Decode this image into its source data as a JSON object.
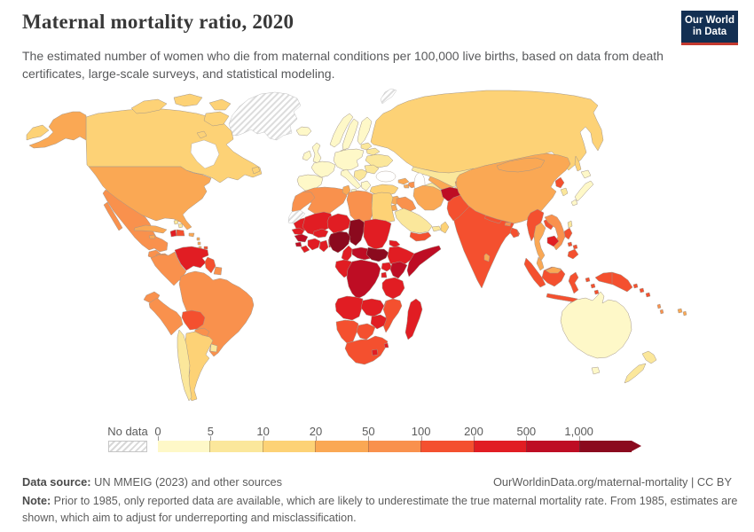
{
  "header": {
    "title": "Maternal mortality ratio, 2020",
    "subtitle": "The estimated number of women who die from maternal conditions per 100,000 live births, based on data from death certificates, large-scale surveys, and statistical modeling.",
    "logo": {
      "line1": "Our World",
      "line2": "in Data",
      "bg_color": "#132f52",
      "accent_color": "#c4392f"
    }
  },
  "legend": {
    "no_data_label": "No data",
    "tick_labels": [
      "0",
      "5",
      "10",
      "20",
      "50",
      "100",
      "200",
      "500",
      "1,000"
    ],
    "bucket_colors": [
      "#FEF8C8",
      "#FBE79B",
      "#FDD276",
      "#FAA854",
      "#F9914D",
      "#F4502F",
      "#E11D23",
      "#BE0D24",
      "#8B0A1E"
    ]
  },
  "footer": {
    "source_label": "Data source:",
    "source_text": " UN MMEIG (2023) and other sources",
    "license_text": "OurWorldinData.org/maternal-mortality | CC BY",
    "note_label": "Note:",
    "note_text": " Prior to 1985, only reported data are available, which are likely to underestimate the true maternal mortality rate. From 1985, estimates are shown, which aim to adjust for underreporting and misclassification."
  },
  "map": {
    "palette": {
      "b1": "#FEF8C8",
      "b2": "#FBE79B",
      "b3": "#FDD276",
      "b4": "#FAA854",
      "b5": "#F9914D",
      "b6": "#F4502F",
      "b7": "#E11D23",
      "b8": "#BE0D24",
      "b9": "#8B0A1E",
      "ocean": "#ffffff",
      "border": "#a3968a"
    },
    "regions": {
      "greenland": "nodata",
      "svalbard": "nodata",
      "western-sahara": "nodata",
      "iceland": "b1",
      "norway": "b1",
      "sweden": "b1",
      "finland": "b1",
      "denmark": "b1",
      "united-kingdom": "b1",
      "ireland": "b1",
      "france": "b1",
      "iberia": "b1",
      "central-europe": "b1",
      "italy": "b1",
      "greece": "b1",
      "baltics": "b2",
      "belarus": "b2",
      "ukraine": "b2",
      "romania": "b2",
      "balkans": "b2",
      "russia": "b3",
      "sakhalin": "b3",
      "chukotka": "b3",
      "canada": "b3",
      "canada-arctic-islands": "b3",
      "alaska": "b4",
      "usa": "b4",
      "mexico": "b5",
      "baja-california": "b5",
      "guatemala": "b5",
      "honduras": "b5",
      "nicaragua": "b5",
      "costa-rica": "b4",
      "panama": "b5",
      "cuba": "b4",
      "jamaica": "b4",
      "haiti": "b7",
      "dominican-republic": "b6",
      "puerto-rico": "b4",
      "lesser-antilles": "b4",
      "bahamas": "b2",
      "trinidad": "b6",
      "venezuela": "b7",
      "colombia": "b5",
      "guyana": "b6",
      "suriname": "b5",
      "ecuador": "b5",
      "peru": "b5",
      "brazil": "b5",
      "bolivia": "b6",
      "paraguay": "b5",
      "chile": "b2",
      "argentina": "b3",
      "uruguay": "b2",
      "morocco": "b5",
      "algeria": "b5",
      "tunisia": "b4",
      "libya": "b5",
      "egypt": "b3",
      "mauritania": "b7",
      "senegal": "b7",
      "guinea": "b8",
      "sierra-leone": "b8",
      "liberia": "b7",
      "cote-divoire": "b7",
      "ghana": "b7",
      "togo-benin": "b7",
      "burkina-faso": "b7",
      "mali": "b7",
      "niger": "b7",
      "nigeria": "b9",
      "chad": "b9",
      "sudan": "b7",
      "eritrea": "b7",
      "ethiopia": "b7",
      "somalia": "b8",
      "cameroon": "b7",
      "central-african-republic": "b8",
      "south-sudan": "b9",
      "uganda": "b7",
      "kenya": "b8",
      "rwanda-burundi": "b7",
      "gabon-congo": "b7",
      "dr-congo": "b8",
      "tanzania": "b7",
      "angola": "b7",
      "zambia": "b7",
      "malawi": "b6",
      "mozambique": "b6",
      "zimbabwe": "b7",
      "namibia": "b6",
      "botswana": "b6",
      "south-africa": "b6",
      "lesotho": "b7",
      "eswatini": "b7",
      "madagascar": "b7",
      "turkey": "b3",
      "syria": "b4",
      "israel-lebanon": "b1",
      "jordan": "b4",
      "iraq": "b5",
      "saudi-arabia": "b2",
      "yemen": "b6",
      "oman": "b3",
      "uae": "b2",
      "iran": "b4",
      "afghanistan": "b8",
      "pakistan": "b6",
      "georgia": "b4",
      "armenia": "b4",
      "azerbaijan": "b5",
      "kazakhstan": "b2",
      "turkmenistan": "b2",
      "uzbekistan": "b4",
      "kyrgyzstan": "b5",
      "tajikistan": "b3",
      "india": "b6",
      "nepal": "b6",
      "bhutan": "b5",
      "bangladesh": "b6",
      "sri-lanka": "b4",
      "china": "b4",
      "mongolia": "b4",
      "north-korea": "b6",
      "south-korea": "b2",
      "japan-hokkaido": "b1",
      "japan-honshu": "b1",
      "japan-kyushu": "b1",
      "taiwan": "b2",
      "myanmar": "b6",
      "thailand": "b4",
      "laos": "b6",
      "vietnam": "b5",
      "cambodia": "b7",
      "malaysia-peninsula": "b4",
      "malaysia-borneo": "b4",
      "sumatra": "b6",
      "java": "b6",
      "kalimantan": "b6",
      "sulawesi": "b6",
      "lesser-sunda": "b6",
      "maluku": "b6",
      "philippines-luzon": "b6",
      "philippines-visayas": "b6",
      "philippines-mindanao": "b6",
      "new-guinea": "b6",
      "solomon-islands": "b6",
      "vanuatu": "b5",
      "fiji": "b4",
      "australia": "b1",
      "tasmania": "b1",
      "new-zealand-north": "b2",
      "new-zealand-south": "b2"
    }
  }
}
